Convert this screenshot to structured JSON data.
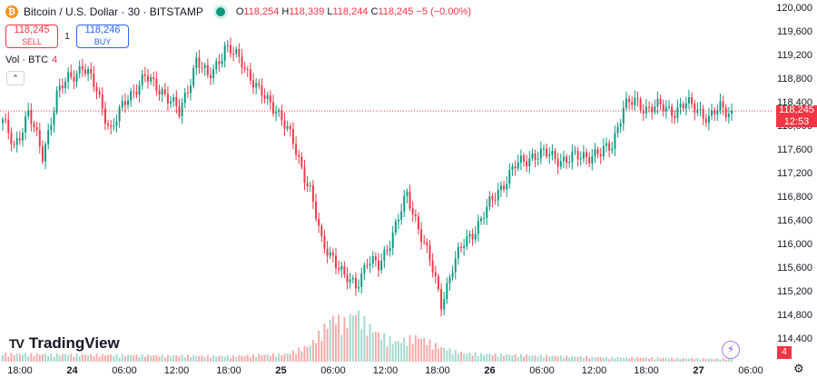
{
  "header": {
    "icon": "bitcoin-icon",
    "symbol": "Bitcoin / U.S. Dollar · 30 · BITSTAMP",
    "open_label": "O",
    "open": "118,254",
    "high_label": "H",
    "high": "118,339",
    "low_label": "L",
    "low": "118,244",
    "close_label": "C",
    "close": "118,245",
    "change": "−5 (−0.00%)"
  },
  "trade": {
    "sell_price": "118,245",
    "sell_label": "SELL",
    "spread": "1",
    "buy_price": "118,246",
    "buy_label": "BUY"
  },
  "volume_legend": {
    "label": "Vol · BTC",
    "value": "4"
  },
  "branding": {
    "name": "TradingView"
  },
  "price_axis": {
    "current_price": "118,245",
    "countdown": "12:53",
    "volume_tag": "4"
  },
  "colors": {
    "up": "#089981",
    "down": "#f23645",
    "vol_up": "#a2d9ce",
    "vol_down": "#f7a9a7",
    "accent": "#2962ff"
  },
  "chart_data": {
    "type": "candlestick",
    "ylim": [
      114200,
      120050
    ],
    "y_ticks": [
      120000,
      119600,
      119200,
      118800,
      118400,
      118000,
      117600,
      117200,
      116800,
      116400,
      116000,
      115600,
      115200,
      114800,
      114400
    ],
    "y_tick_labels": [
      "120,000",
      "119,600",
      "119,200",
      "118,800",
      "118,400",
      "118,000",
      "117,600",
      "117,200",
      "116,800",
      "116,400",
      "116,000",
      "115,600",
      "115,200",
      "114,800",
      "114,400"
    ],
    "x_ticks": [
      "18:00",
      "24",
      "06:00",
      "12:00",
      "18:00",
      "25",
      "06:00",
      "12:00",
      "18:00",
      "26",
      "06:00",
      "12:00",
      "18:00",
      "27",
      "06:00"
    ],
    "current_price": 118245,
    "anchors": [
      [
        0,
        118050
      ],
      [
        4,
        117650
      ],
      [
        9,
        118200
      ],
      [
        14,
        117500
      ],
      [
        19,
        118500
      ],
      [
        23,
        118800
      ],
      [
        28,
        119000
      ],
      [
        33,
        118600
      ],
      [
        38,
        117900
      ],
      [
        44,
        118500
      ],
      [
        50,
        118800
      ],
      [
        56,
        118600
      ],
      [
        62,
        118200
      ],
      [
        68,
        119100
      ],
      [
        72,
        118800
      ],
      [
        78,
        119300
      ],
      [
        84,
        119100
      ],
      [
        90,
        118550
      ],
      [
        96,
        118300
      ],
      [
        102,
        117700
      ],
      [
        108,
        116900
      ],
      [
        112,
        116000
      ],
      [
        116,
        115800
      ],
      [
        120,
        115400
      ],
      [
        124,
        115300
      ],
      [
        128,
        115700
      ],
      [
        132,
        115600
      ],
      [
        138,
        116300
      ],
      [
        142,
        116800
      ],
      [
        146,
        116300
      ],
      [
        150,
        115700
      ],
      [
        154,
        115000
      ],
      [
        158,
        115600
      ],
      [
        162,
        116000
      ],
      [
        168,
        116400
      ],
      [
        174,
        116900
      ],
      [
        180,
        117300
      ],
      [
        186,
        117500
      ],
      [
        192,
        117500
      ],
      [
        198,
        117400
      ],
      [
        204,
        117500
      ],
      [
        210,
        117500
      ],
      [
        214,
        117700
      ],
      [
        218,
        118300
      ],
      [
        222,
        118400
      ],
      [
        226,
        118300
      ],
      [
        232,
        118300
      ],
      [
        236,
        118250
      ],
      [
        240,
        118350
      ],
      [
        244,
        118300
      ],
      [
        248,
        118100
      ],
      [
        252,
        118300
      ],
      [
        256,
        118245
      ]
    ],
    "volume_profile": [
      [
        0,
        0.14
      ],
      [
        40,
        0.12
      ],
      [
        80,
        0.1
      ],
      [
        100,
        0.14
      ],
      [
        108,
        0.3
      ],
      [
        112,
        0.55
      ],
      [
        116,
        0.8
      ],
      [
        120,
        0.7
      ],
      [
        124,
        0.9
      ],
      [
        128,
        0.65
      ],
      [
        132,
        0.5
      ],
      [
        138,
        0.35
      ],
      [
        146,
        0.45
      ],
      [
        154,
        0.25
      ],
      [
        162,
        0.15
      ],
      [
        180,
        0.12
      ],
      [
        210,
        0.08
      ],
      [
        256,
        0.05
      ]
    ]
  }
}
